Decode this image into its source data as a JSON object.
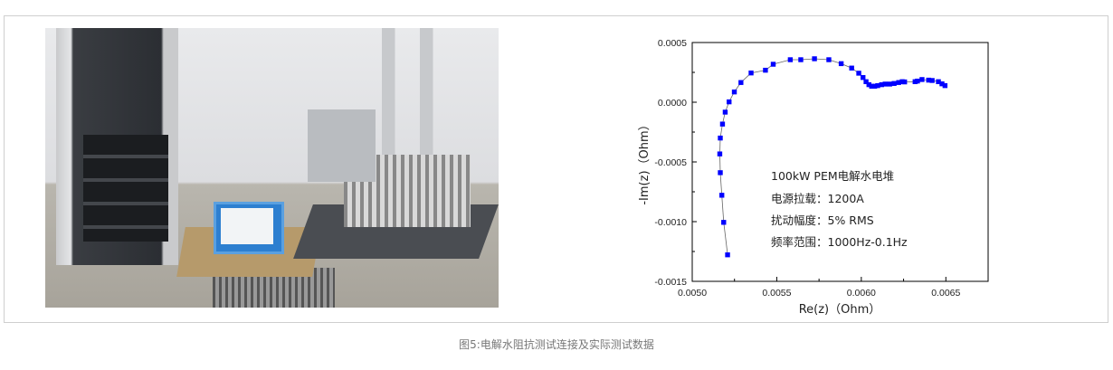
{
  "caption": "图5:电解水阻抗测试连接及实际测试数据",
  "photo": {
    "subject": "test-setup-photo"
  },
  "chart_data": {
    "type": "scatter",
    "xlabel": "Re(z)（Ohm）",
    "ylabel": "-Im(z)（Ohm）",
    "xlim": [
      0.005,
      0.00675
    ],
    "ylim": [
      -0.0015,
      0.0005
    ],
    "xticks": [
      "0.0050",
      "0.0055",
      "0.0060",
      "0.0065"
    ],
    "yticks": [
      "0.0005",
      "0.0000",
      "-0.0005",
      "-0.0010",
      "-0.0015"
    ],
    "grid": false,
    "marker_color": "#0000ff",
    "line_color": "#666666",
    "annotations": [
      "100kW PEM电解水电堆",
      "电源拉载：1200A",
      "扰动幅度：5% RMS",
      "频率范围：1000Hz-0.1Hz"
    ],
    "x": [
      0.005209,
      0.005186,
      0.005175,
      0.005166,
      0.005163,
      0.005166,
      0.005179,
      0.005195,
      0.005218,
      0.005249,
      0.005288,
      0.005348,
      0.005433,
      0.005479,
      0.00558,
      0.005642,
      0.005723,
      0.005808,
      0.005881,
      0.005943,
      0.005985,
      0.00601,
      0.006028,
      0.006045,
      0.006061,
      0.006079,
      0.006097,
      0.00612,
      0.006141,
      0.006168,
      0.006194,
      0.006221,
      0.006242,
      0.006256,
      0.006318,
      0.006332,
      0.006359,
      0.006398,
      0.006419,
      0.006456,
      0.006477,
      0.006495
    ],
    "y": [
      -0.001278,
      -0.001006,
      -0.000779,
      -0.00059,
      -0.000433,
      -0.0003,
      -0.000183,
      -8.3e-05,
      3e-06,
      8.6e-05,
      0.000165,
      0.000245,
      0.000268,
      0.000318,
      0.000356,
      0.000356,
      0.000364,
      0.000356,
      0.000323,
      0.000286,
      0.000243,
      0.000207,
      0.000172,
      0.000147,
      0.000134,
      0.000134,
      0.000139,
      0.000147,
      0.000152,
      0.000152,
      0.000157,
      0.000165,
      0.000172,
      0.00017,
      0.000172,
      0.000177,
      0.00019,
      0.000185,
      0.000182,
      0.000172,
      0.000154,
      0.000139
    ]
  }
}
